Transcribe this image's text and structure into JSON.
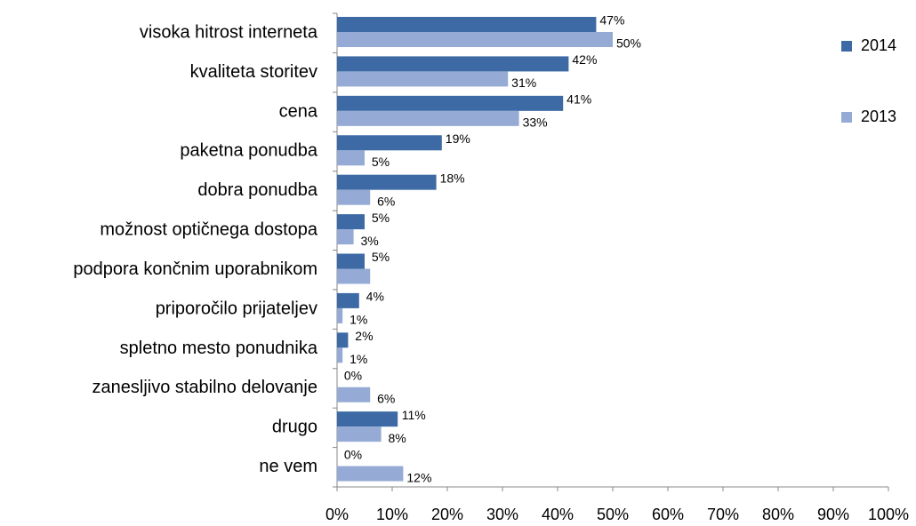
{
  "chart_data": {
    "type": "bar",
    "orientation": "horizontal",
    "categories": [
      "visoka hitrost interneta",
      "kvaliteta storitev",
      "cena",
      "paketna ponudba",
      "dobra ponudba",
      "možnost optičnega dostopa",
      "podpora končnim uporabnikom",
      "priporočilo prijateljev",
      "spletno mesto ponudnika",
      "zanesljivo stabilno delovanje",
      "drugo",
      "ne vem"
    ],
    "series": [
      {
        "name": "2014",
        "color": "#3d6aa5",
        "values": [
          47,
          42,
          41,
          19,
          18,
          5,
          5,
          4,
          2,
          0,
          11,
          0
        ],
        "value_labels": [
          "47%",
          "42%",
          "41%",
          "19%",
          "18%",
          "5%",
          "5%",
          "4%",
          "2%",
          "0%",
          "11%",
          "0%"
        ]
      },
      {
        "name": "2013",
        "color": "#95abd5",
        "values": [
          50,
          31,
          33,
          5,
          6,
          3,
          6,
          1,
          1,
          6,
          8,
          12
        ],
        "value_labels": [
          "50%",
          "31%",
          "33%",
          "5%",
          "6%",
          "3%",
          null,
          "1%",
          "1%",
          "6%",
          "8%",
          "12%"
        ]
      }
    ],
    "xlim": [
      0,
      100
    ],
    "xticks": [
      {
        "value": 0,
        "label": "0%"
      },
      {
        "value": 10,
        "label": "10%"
      },
      {
        "value": 20,
        "label": "20%"
      },
      {
        "value": 30,
        "label": "30%"
      },
      {
        "value": 40,
        "label": "40%"
      },
      {
        "value": 50,
        "label": "50%"
      },
      {
        "value": 60,
        "label": "60%"
      },
      {
        "value": 70,
        "label": "70%"
      },
      {
        "value": 80,
        "label": "80%"
      },
      {
        "value": 90,
        "label": "90%"
      },
      {
        "value": 100,
        "label": "100%"
      }
    ],
    "grid": false,
    "legend": "right"
  }
}
